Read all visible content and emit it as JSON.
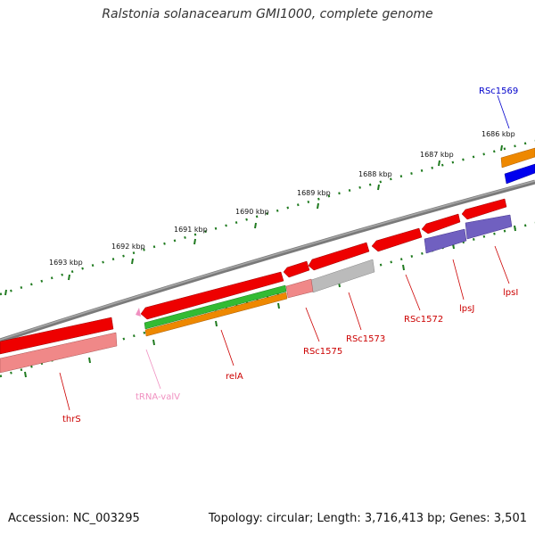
{
  "title": "Ralstonia solanacearum GMI1000, complete genome",
  "footer": {
    "accession": "Accession: NC_003295",
    "summary": "Topology: circular; Length: 3,716,413 bp; Genes: 3,501"
  },
  "scale": [
    "1686 kbp",
    "1687 kbp",
    "1688 kbp",
    "1689 kbp",
    "1690 kbp",
    "1691 kbp",
    "1692 kbp",
    "1693 kbp"
  ],
  "genes": [
    {
      "name": "RSc1569",
      "color": "#0000cc"
    },
    {
      "name": "lpsI",
      "color": "#cc0000"
    },
    {
      "name": "lpsJ",
      "color": "#cc0000"
    },
    {
      "name": "RSc1572",
      "color": "#cc0000"
    },
    {
      "name": "RSc1573",
      "color": "#cc0000"
    },
    {
      "name": "RSc1575",
      "color": "#cc0000"
    },
    {
      "name": "relA",
      "color": "#cc0000"
    },
    {
      "name": "tRNA-valV",
      "color": "#f090c0"
    },
    {
      "name": "thrS",
      "color": "#cc0000"
    }
  ],
  "colors": {
    "backbone": "#7a7a7a",
    "tick": "#1f7a1f",
    "cds": "#ee0000",
    "rrna_light": "#f08888",
    "gene_gray": "#bbbbbb",
    "purple": "#7060c0",
    "green": "#33bb33",
    "orange": "#ee8800",
    "blue": "#0000ee"
  }
}
